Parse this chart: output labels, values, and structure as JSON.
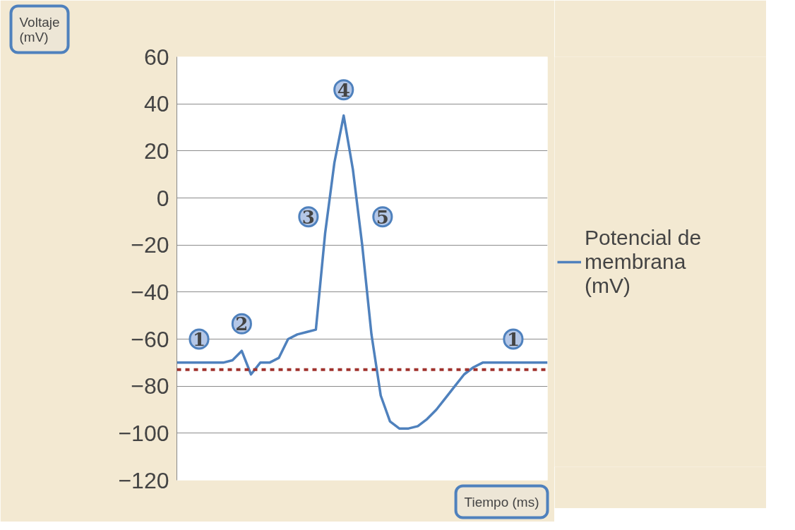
{
  "chart_data": {
    "type": "line",
    "ylabel": "Voltaje (mV)",
    "xlabel": "Tiempo (ms)",
    "categories": [
      null,
      null,
      null,
      null,
      null,
      null,
      null,
      null,
      null,
      null,
      null,
      null,
      null,
      null,
      null,
      null,
      null,
      null,
      null,
      null,
      null,
      null,
      null,
      null,
      null,
      null,
      null,
      null,
      null,
      null,
      null,
      null,
      null,
      null,
      null,
      null,
      null,
      null,
      null,
      null,
      null
    ],
    "series": [
      {
        "name": "Potencial de membrana (mV)",
        "color": "#4f81bd",
        "values": [
          -70,
          -70,
          -70,
          -70,
          -70,
          -70,
          -69,
          -65,
          -75,
          -70,
          -70,
          -68,
          -60,
          -58,
          -57,
          -56,
          -15,
          15,
          35,
          12,
          -20,
          -58,
          -84,
          -95,
          -98,
          -98,
          -97,
          -94,
          -90,
          -85,
          -80,
          -75,
          -72,
          -70,
          -70,
          -70,
          -70,
          -70,
          -70,
          -70,
          -70
        ]
      }
    ],
    "ylim": [
      -120,
      60
    ],
    "yticks": [
      -120,
      -100,
      -80,
      -60,
      -40,
      -20,
      0,
      20,
      40,
      60
    ],
    "grid": "y",
    "legend": "right",
    "tick_labels": "y",
    "marker": "none",
    "line_style": "solid",
    "ref_lines": [
      {
        "axis": "y",
        "value": -73,
        "color": "#a0322d",
        "line_style": "dashed"
      }
    ],
    "annotations": [
      "1",
      "2",
      "3",
      "4",
      "5",
      "1"
    ]
  }
}
